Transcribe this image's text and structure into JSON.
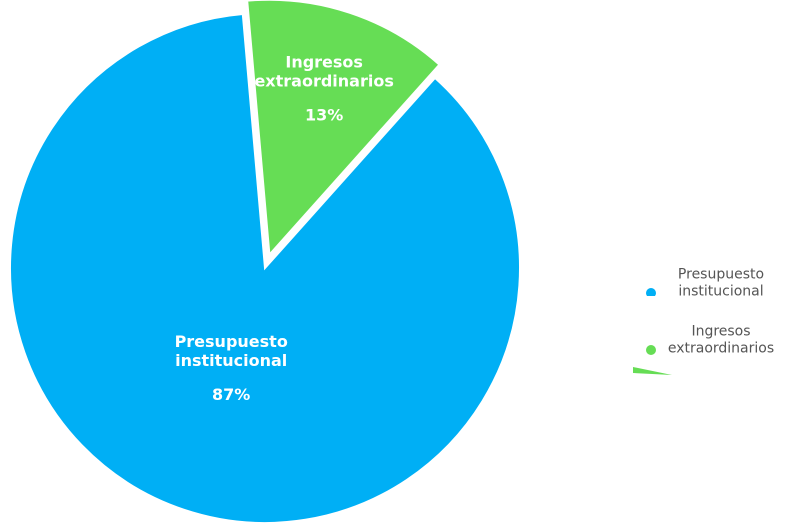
{
  "chart_data": {
    "type": "pie",
    "categories": [
      "Presupuesto institucional",
      "Ingresos extraordinarios"
    ],
    "values": [
      87,
      13
    ],
    "value_labels": [
      "87%",
      "13%"
    ],
    "colors": [
      "#00aff5",
      "#66dd55"
    ]
  }
}
